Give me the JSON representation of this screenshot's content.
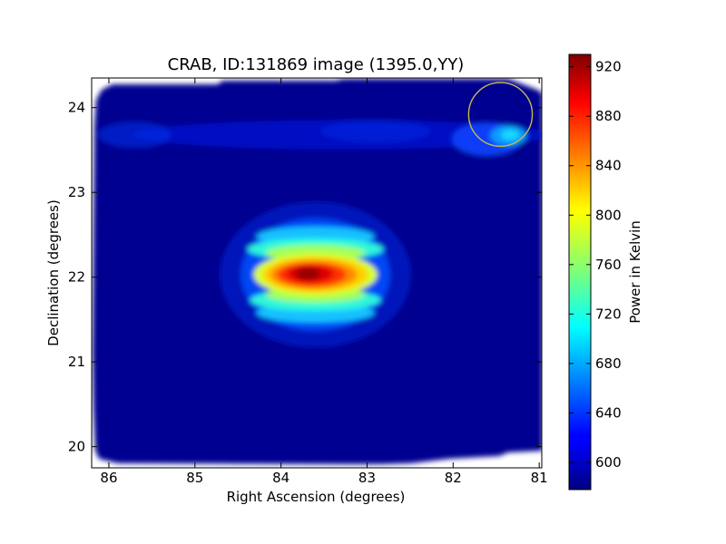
{
  "chart_data": {
    "type": "heatmap",
    "title": "CRAB, ID:131869 image (1395.0,YY)",
    "xlabel": "Right Ascension (degrees)",
    "ylabel": "Declination (degrees)",
    "xlim": [
      86.2,
      80.97
    ],
    "ylim": [
      19.75,
      24.35
    ],
    "x_ticks": [
      {
        "value": 86,
        "label": "86"
      },
      {
        "value": 85,
        "label": "85"
      },
      {
        "value": 84,
        "label": "84"
      },
      {
        "value": 83,
        "label": "83"
      },
      {
        "value": 82,
        "label": "82"
      },
      {
        "value": 81,
        "label": "81"
      }
    ],
    "y_ticks": [
      {
        "value": 20,
        "label": "20"
      },
      {
        "value": 21,
        "label": "21"
      },
      {
        "value": 22,
        "label": "22"
      },
      {
        "value": 23,
        "label": "23"
      },
      {
        "value": 24,
        "label": "24"
      }
    ],
    "colorbar": {
      "label": "Power in Kelvin",
      "range": [
        578,
        930
      ],
      "colormap": "jet",
      "ticks": [
        {
          "value": 600,
          "label": "600"
        },
        {
          "value": 640,
          "label": "640"
        },
        {
          "value": 680,
          "label": "680"
        },
        {
          "value": 720,
          "label": "720"
        },
        {
          "value": 760,
          "label": "760"
        },
        {
          "value": 800,
          "label": "800"
        },
        {
          "value": 840,
          "label": "840"
        },
        {
          "value": 880,
          "label": "880"
        },
        {
          "value": 920,
          "label": "920"
        }
      ]
    },
    "image_extent": {
      "ra": [
        86.12,
        81.05
      ],
      "dec": [
        19.83,
        24.27
      ]
    },
    "background_level": 590,
    "peak": {
      "ra": 83.6,
      "dec": 22.03,
      "value": 928
    },
    "sources": [
      {
        "name": "central source",
        "ra": 83.6,
        "dec": 22.03,
        "peak_value": 928
      },
      {
        "name": "north-east bright blob",
        "ra": 81.4,
        "dec": 23.67,
        "peak_value": 690
      }
    ],
    "marker_circle": {
      "ra": 81.45,
      "dec": 23.92,
      "radius_deg": 0.37,
      "color": "#c8b94a"
    }
  }
}
